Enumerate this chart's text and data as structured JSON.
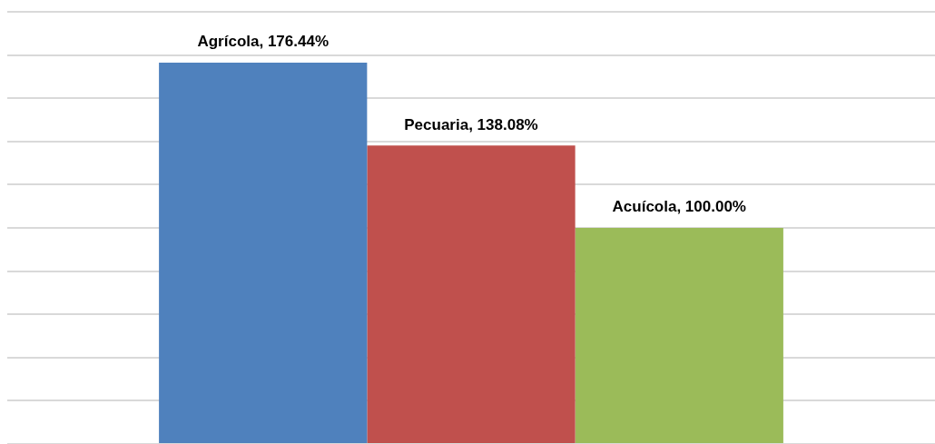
{
  "chart_data": {
    "type": "bar",
    "categories": [
      null
    ],
    "series": [
      {
        "color": "#4f81bd",
        "values": [
          176.44
        ],
        "value_labels": [
          "Agrícola, 176.44%"
        ]
      },
      {
        "color": "#c0504d",
        "values": [
          138.08
        ],
        "value_labels": [
          "Pecuaria, 138.08%"
        ]
      },
      {
        "color": "#9bbb59",
        "values": [
          100.0
        ],
        "value_labels": [
          "Acuícola, 100.00%"
        ]
      }
    ],
    "grid": "y",
    "legend": false
  }
}
